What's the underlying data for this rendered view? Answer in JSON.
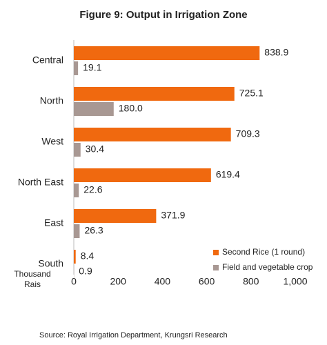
{
  "chart_data": {
    "type": "hbar",
    "title": "Figure 9: Output in Irrigation Zone",
    "categories": [
      "Central",
      "North",
      "West",
      "North East",
      "East",
      "South"
    ],
    "series": [
      {
        "name": "Second Rice (1 round)",
        "color": "#f0690f",
        "values": [
          838.9,
          725.1,
          709.3,
          619.4,
          371.9,
          8.4
        ],
        "value_labels": [
          "838.9",
          "725.1",
          "709.3",
          "619.4",
          "371.9",
          "8.4"
        ]
      },
      {
        "name": "Field and vegetable crop",
        "color": "#a89893",
        "values": [
          19.1,
          180.0,
          30.4,
          22.6,
          26.3,
          0.9
        ],
        "value_labels": [
          "19.1",
          "180.0",
          "30.4",
          "22.6",
          "26.3",
          "0.9"
        ]
      }
    ],
    "xlabel": "Thousand Rais",
    "xlim": [
      0,
      1000
    ],
    "xticks": [
      0,
      200,
      400,
      600,
      800,
      {
        "value": 1000,
        "label": "1,000"
      }
    ],
    "legend": "lower right",
    "source": "Source: Royal Irrigation Department, Krungsri Research"
  }
}
